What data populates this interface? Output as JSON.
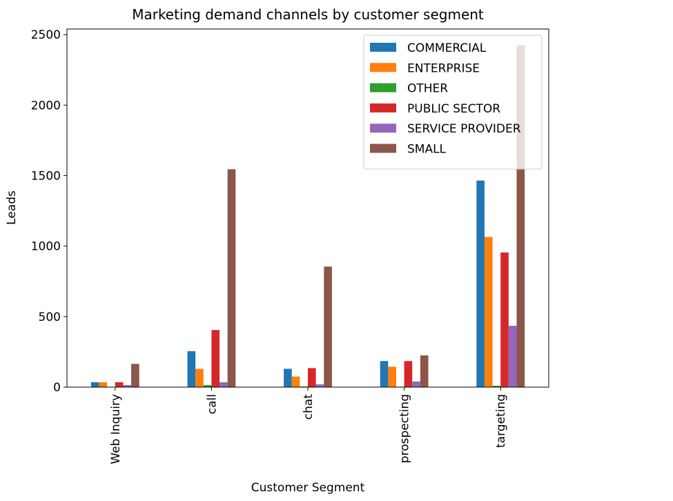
{
  "chart_data": {
    "type": "bar",
    "title": "Marketing demand channels by customer segment",
    "xlabel": "Customer Segment",
    "ylabel": "Leads",
    "categories": [
      "Web Inquiry",
      "call",
      "chat",
      "prospecting",
      "targeting"
    ],
    "series": [
      {
        "name": "COMMERCIAL",
        "color": "#1f77b4",
        "values": [
          35,
          255,
          130,
          185,
          1465
        ]
      },
      {
        "name": "ENTERPRISE",
        "color": "#ff7f0e",
        "values": [
          35,
          130,
          75,
          145,
          1065
        ]
      },
      {
        "name": "OTHER",
        "color": "#2ca02c",
        "values": [
          2,
          15,
          5,
          3,
          10
        ]
      },
      {
        "name": "PUBLIC SECTOR",
        "color": "#d62728",
        "values": [
          35,
          405,
          135,
          185,
          955
        ]
      },
      {
        "name": "SERVICE PROVIDER",
        "color": "#9467bd",
        "values": [
          15,
          35,
          20,
          40,
          435
        ]
      },
      {
        "name": "SMALL",
        "color": "#8c564b",
        "values": [
          165,
          1545,
          855,
          225,
          2425
        ]
      }
    ],
    "ylim": [
      0,
      2540
    ],
    "yticks": [
      0,
      500,
      1000,
      1500,
      2000,
      2500
    ],
    "legend": "upper right"
  }
}
